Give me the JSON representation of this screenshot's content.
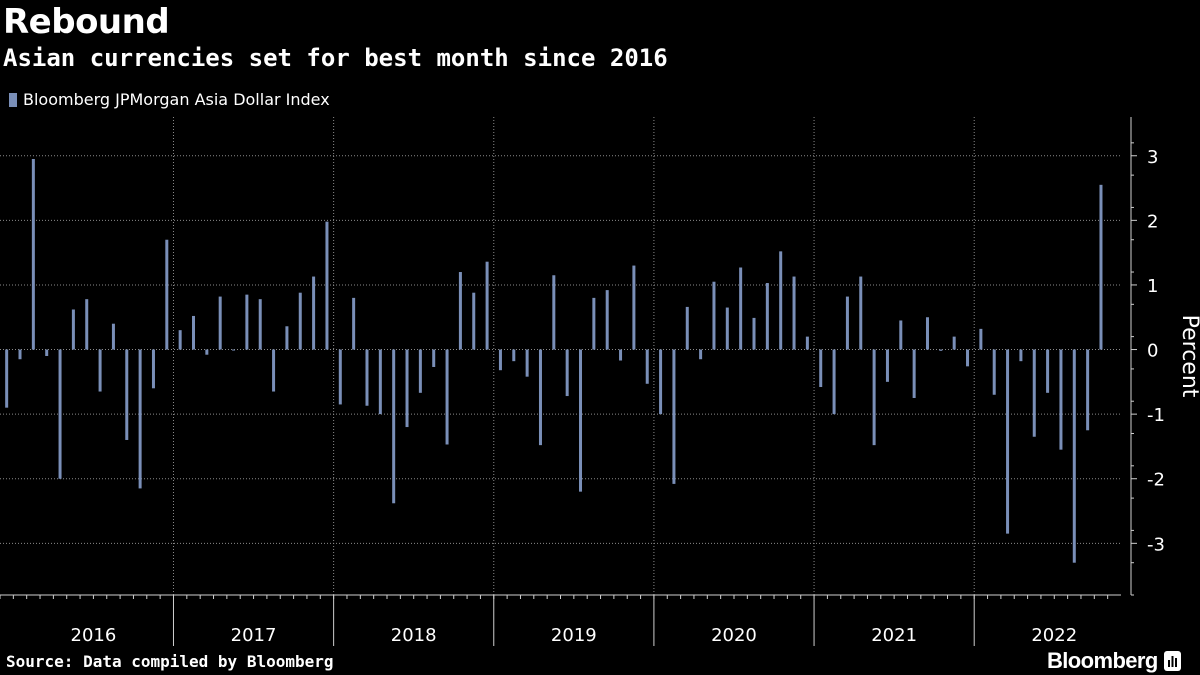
{
  "header": {
    "title": "Rebound",
    "subtitle": "Asian currencies set for best month since 2016"
  },
  "legend": {
    "label": "Bloomberg JPMorgan Asia Dollar Index"
  },
  "footer": {
    "source": "Source: Data compiled by Bloomberg",
    "logo": "Bloomberg"
  },
  "colors": {
    "bar": "#7a8fb8",
    "background": "#000000",
    "text": "#ffffff",
    "grid": "#8a8a8a"
  },
  "chart_data": {
    "type": "bar",
    "title": "Rebound",
    "subtitle": "Asian currencies set for best month since 2016",
    "ylabel": "Percent",
    "xlabel": "",
    "ylim": [
      -3.8,
      3.6
    ],
    "yticks": [
      3,
      2,
      1,
      0,
      -1,
      -2,
      -3
    ],
    "xlim": [
      2015.9167,
      2022.9167
    ],
    "grid": true,
    "legend_position": "top-left",
    "year_labels": [
      "2016",
      "2017",
      "2018",
      "2019",
      "2020",
      "2021",
      "2022"
    ],
    "series": [
      {
        "name": "Bloomberg JPMorgan Asia Dollar Index",
        "start": "2015-12",
        "values": [
          -0.9,
          -0.15,
          2.95,
          -0.1,
          -2.0,
          0.62,
          0.78,
          -0.65,
          0.4,
          -1.4,
          -2.15,
          -0.6,
          1.7,
          0.3,
          0.52,
          -0.08,
          0.82,
          0.0,
          0.85,
          0.78,
          -0.65,
          0.36,
          0.88,
          1.13,
          1.98,
          -0.85,
          0.8,
          -0.87,
          -1.0,
          -2.38,
          -1.2,
          -0.67,
          -0.27,
          -1.47,
          1.2,
          0.88,
          1.36,
          -0.32,
          -0.18,
          -0.42,
          -1.48,
          1.15,
          -0.72,
          -2.2,
          0.8,
          0.92,
          -0.17,
          1.3,
          -0.53,
          -1.0,
          -2.08,
          0.66,
          -0.15,
          1.05,
          0.65,
          1.27,
          0.49,
          1.03,
          1.52,
          1.13,
          0.2,
          -0.58,
          -1.0,
          0.82,
          1.13,
          -1.48,
          -0.5,
          0.45,
          -0.75,
          0.5,
          -0.02,
          0.2,
          -0.26,
          0.32,
          -0.7,
          -2.85,
          -0.18,
          -1.35,
          -0.67,
          -1.55,
          -3.3,
          -1.25,
          2.55
        ]
      }
    ]
  }
}
